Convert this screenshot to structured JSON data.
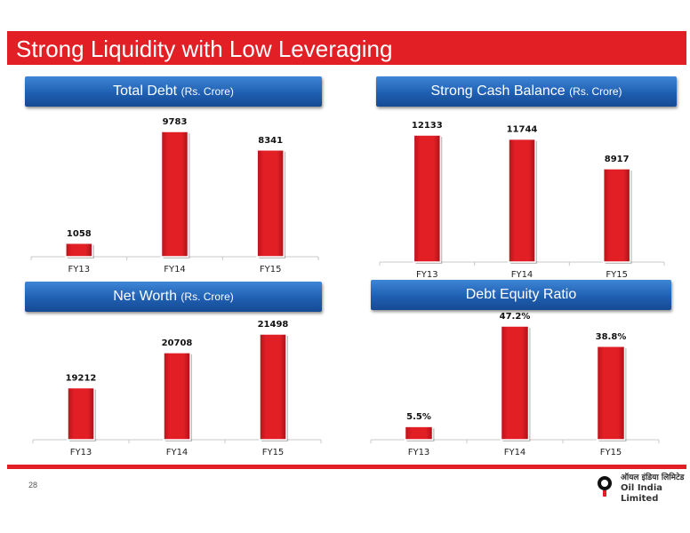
{
  "slide": {
    "title": "Strong Liquidity with Low Leveraging",
    "page_number": "28",
    "logo_hindi": "ऑयल इंडिया लिमिटेड",
    "logo_english": "Oil India Limited",
    "colors": {
      "title_bar": "#e31f26",
      "banner": "#1f5fb2",
      "bar": "#e31f26"
    }
  },
  "chart_data": [
    {
      "type": "bar",
      "title": "Total Debt",
      "unit": "(Rs. Crore)",
      "categories": [
        "FY13",
        "FY14",
        "FY15"
      ],
      "values": [
        1058,
        9783,
        8341
      ],
      "labels": [
        "1058",
        "9783",
        "8341"
      ],
      "ylim": [
        0,
        10500
      ]
    },
    {
      "type": "bar",
      "title": "Strong Cash Balance",
      "unit": "(Rs. Crore)",
      "categories": [
        "FY13",
        "FY14",
        "FY15"
      ],
      "values": [
        12133,
        11744,
        8917
      ],
      "labels": [
        "12133",
        "11744",
        "8917"
      ],
      "ylim": [
        0,
        12800
      ]
    },
    {
      "type": "bar",
      "title": "Net Worth",
      "unit": "(Rs. Crore)",
      "categories": [
        "FY13",
        "FY14",
        "FY15"
      ],
      "values": [
        19212,
        20708,
        21498
      ],
      "labels": [
        "19212",
        "20708",
        "21498"
      ],
      "ylim": [
        17000,
        21750
      ]
    },
    {
      "type": "bar",
      "title": "Debt Equity Ratio",
      "unit": "",
      "categories": [
        "FY13",
        "FY14",
        "FY15"
      ],
      "values": [
        5.5,
        47.2,
        38.8
      ],
      "labels": [
        "5.5%",
        "47.2%",
        "38.8%"
      ],
      "ylim": [
        0,
        49
      ]
    }
  ]
}
